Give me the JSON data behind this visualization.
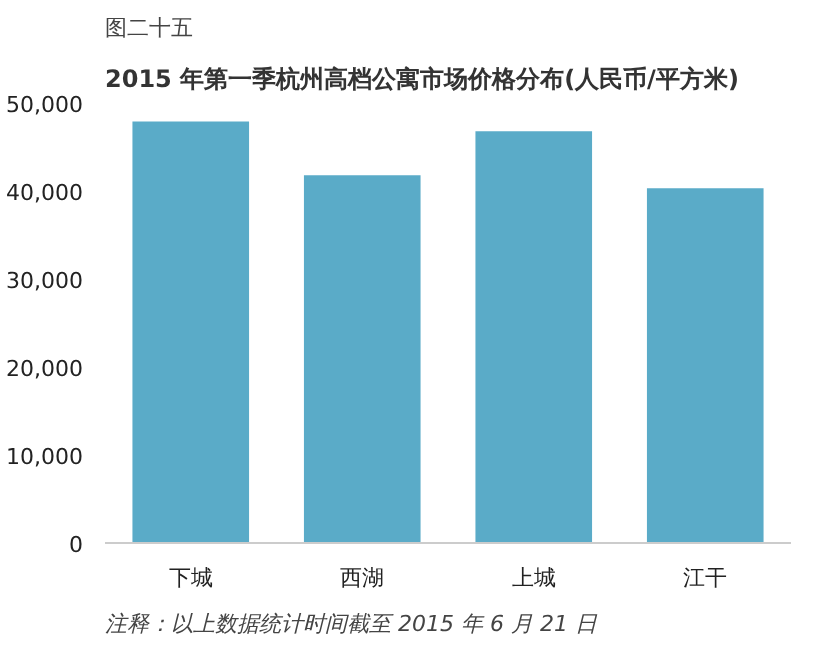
{
  "chart_data": {
    "type": "bar",
    "subtitle": "图二十五",
    "title": "2015 年第一季杭州高档公寓市场价格分布(人民币/平方米)",
    "categories": [
      "下城",
      "西湖",
      "上城",
      "江干"
    ],
    "values": [
      47900,
      41800,
      46800,
      40300
    ],
    "color": "#5aabc8",
    "ylim": [
      0,
      50000
    ],
    "yticks": [
      {
        "value": 0,
        "label": "0"
      },
      {
        "value": 10000,
        "label": "10,000"
      },
      {
        "value": 20000,
        "label": "20,000"
      },
      {
        "value": 30000,
        "label": "30,000"
      },
      {
        "value": 40000,
        "label": "40,000"
      },
      {
        "value": 50000,
        "label": "50,000"
      }
    ],
    "grid": false,
    "annotations": [
      "注释：以上数据统计时间截至 2015 年 6 月 21 日"
    ]
  }
}
